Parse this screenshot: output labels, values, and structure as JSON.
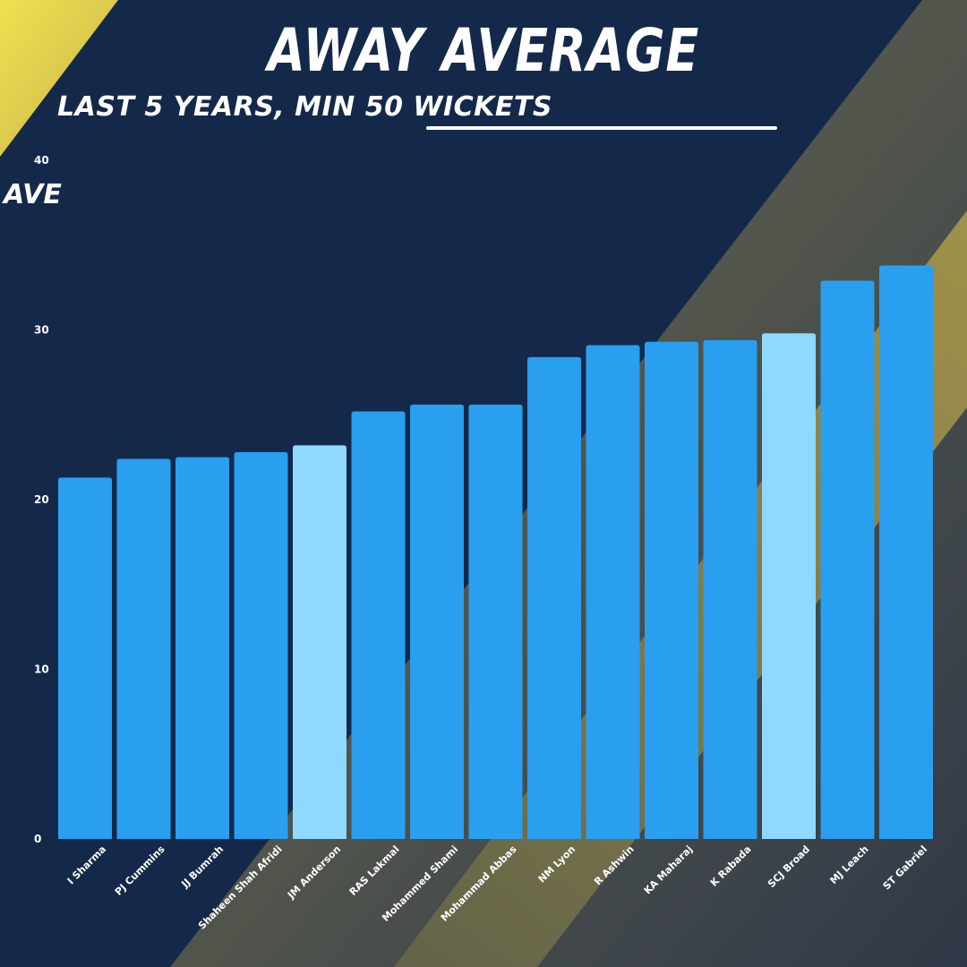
{
  "title": "AWAY AVERAGE",
  "subtitle": "LAST 5 YEARS, MIN 50 WICKETS",
  "colors": {
    "background": "#14294a",
    "bar": "#299ff0",
    "highlight": "#8fd8ff",
    "accent_yellow": "#e8d04a"
  },
  "chart_data": {
    "type": "bar",
    "title": "AWAY AVERAGE",
    "subtitle": "LAST 5 YEARS, MIN 50 WICKETS",
    "xlabel": "",
    "ylabel": "AVE",
    "ylim": [
      0,
      40
    ],
    "yticks": [
      0,
      10,
      20,
      30,
      40
    ],
    "grid": false,
    "categories": [
      "I Sharma",
      "PJ Cummins",
      "JJ Bumrah",
      "Shaheen Shah Afridi",
      "JM Anderson",
      "RAS Lakmal",
      "Mohammed Shami",
      "Mohammad Abbas",
      "NM Lyon",
      "R Ashwin",
      "KA Maharaj",
      "K Rabada",
      "SCJ Broad",
      "MJ Leach",
      "ST Gabriel"
    ],
    "values": [
      21.3,
      22.4,
      22.5,
      22.8,
      23.2,
      25.2,
      25.6,
      25.6,
      28.4,
      29.1,
      29.3,
      29.4,
      29.8,
      32.9,
      33.8
    ],
    "highlighted": [
      "JM Anderson",
      "SCJ Broad"
    ]
  }
}
